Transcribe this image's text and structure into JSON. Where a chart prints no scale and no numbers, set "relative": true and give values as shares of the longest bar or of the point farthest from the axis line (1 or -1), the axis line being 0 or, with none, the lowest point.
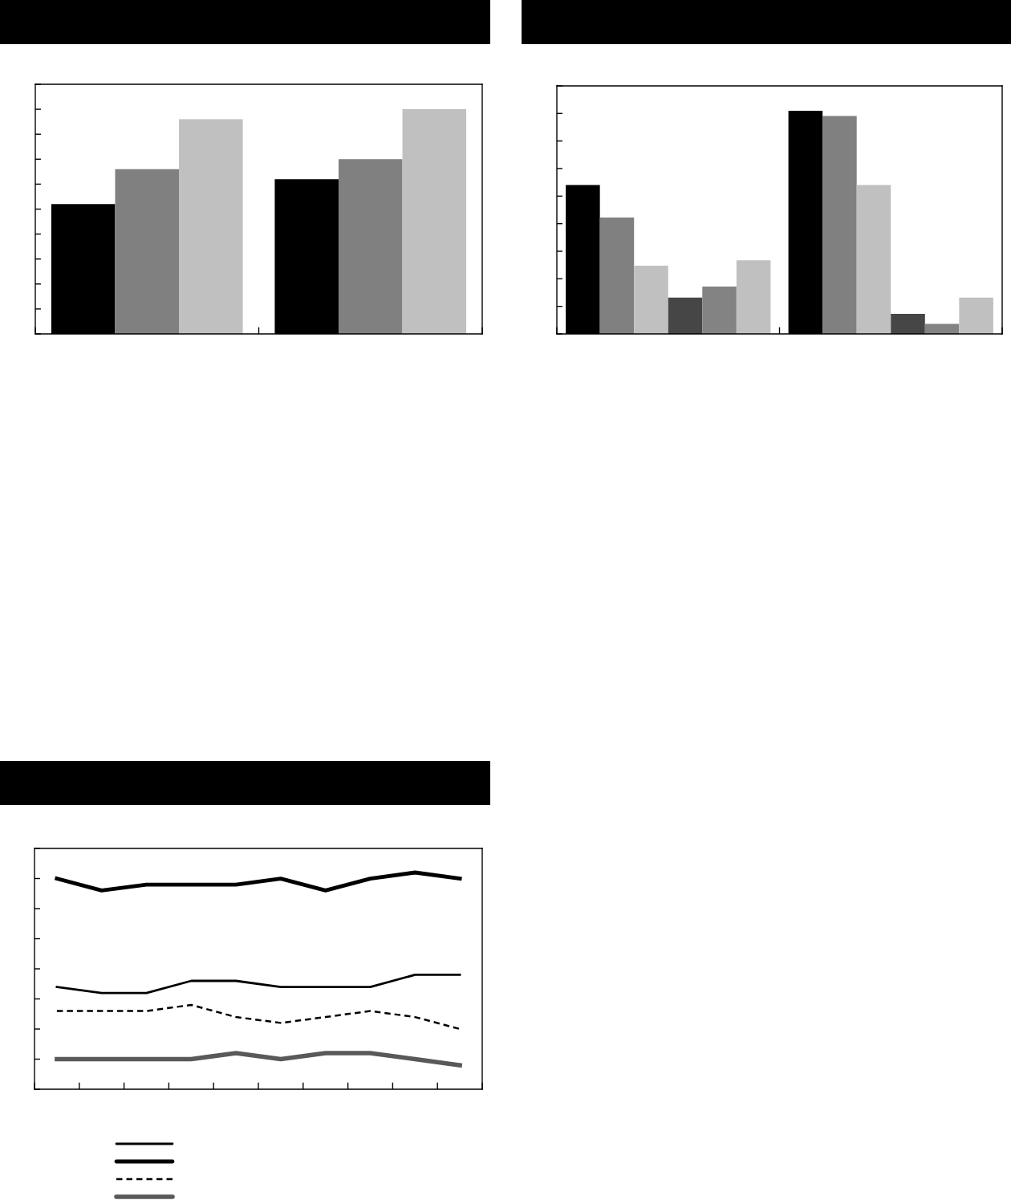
{
  "chart_data": [
    {
      "type": "bar",
      "relative": true,
      "categories": [
        null,
        null
      ],
      "series": [
        {
          "color": "#000000",
          "values": [
            0.578,
            0.689
          ]
        },
        {
          "color": "#808080",
          "values": [
            0.733,
            0.778
          ]
        },
        {
          "color": "#c0c0c0",
          "values": [
            0.956,
            1
          ]
        }
      ]
    },
    {
      "type": "bar",
      "relative": true,
      "categories": [
        null,
        null
      ],
      "series": [
        {
          "color": "#000000",
          "values": [
            0.667,
            1
          ]
        },
        {
          "color": "#808080",
          "values": [
            0.521,
            0.976
          ]
        },
        {
          "color": "#c0c0c0",
          "values": [
            0.306,
            0.667
          ]
        },
        {
          "color": "#464646",
          "values": [
            0.163,
            0.09
          ]
        },
        {
          "color": "#838383",
          "values": [
            0.212,
            0.045
          ]
        },
        {
          "color": "#c0c0c0",
          "values": [
            0.33,
            0.163
          ]
        }
      ]
    },
    {
      "type": "line",
      "relative": true,
      "categories": [
        null,
        null,
        null,
        null,
        null,
        null,
        null,
        null,
        null,
        null
      ],
      "series": [
        {
          "color": "#000000",
          "line_style": "solid",
          "values": [
            0.472,
            0.444,
            0.444,
            0.5,
            0.5,
            0.472,
            0.472,
            0.472,
            0.528,
            0.528
          ]
        },
        {
          "color": "#000000",
          "line_style": "solid",
          "values": [
            0.972,
            0.917,
            0.944,
            0.944,
            0.944,
            0.972,
            0.917,
            0.972,
            1,
            0.972
          ]
        },
        {
          "color": "#000000",
          "line_style": "dashed",
          "values": [
            0.361,
            0.361,
            0.361,
            0.389,
            0.333,
            0.306,
            0.333,
            0.361,
            0.333,
            0.278
          ]
        },
        {
          "color": "#595959",
          "line_style": "solid",
          "values": [
            0.139,
            0.139,
            0.139,
            0.139,
            0.167,
            0.139,
            0.167,
            0.167,
            0.139,
            0.111
          ]
        }
      ]
    }
  ]
}
